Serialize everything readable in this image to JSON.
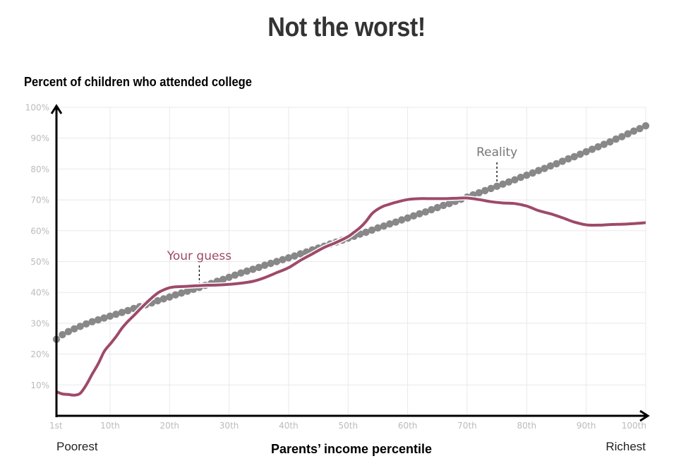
{
  "chart_data": {
    "type": "line",
    "title": "Not the worst!",
    "ylabel": "Percent of children who attended college",
    "xlabel": "Parents’ income percentile",
    "x_left_label": "Poorest",
    "x_right_label": "Richest",
    "xlim": [
      1,
      100
    ],
    "ylim": [
      0,
      100
    ],
    "grid": true,
    "x_ticks": [
      {
        "value": 1,
        "label": "1st"
      },
      {
        "value": 10,
        "label": "10th"
      },
      {
        "value": 20,
        "label": "20th"
      },
      {
        "value": 30,
        "label": "30th"
      },
      {
        "value": 40,
        "label": "40th"
      },
      {
        "value": 50,
        "label": "50th"
      },
      {
        "value": 60,
        "label": "60th"
      },
      {
        "value": 70,
        "label": "70th"
      },
      {
        "value": 80,
        "label": "80th"
      },
      {
        "value": 90,
        "label": "90th"
      },
      {
        "value": 100,
        "label": "100th"
      }
    ],
    "y_ticks": [
      {
        "value": 10,
        "label": "10%"
      },
      {
        "value": 20,
        "label": "20%"
      },
      {
        "value": 30,
        "label": "30%"
      },
      {
        "value": 40,
        "label": "40%"
      },
      {
        "value": 50,
        "label": "50%"
      },
      {
        "value": 60,
        "label": "60%"
      },
      {
        "value": 70,
        "label": "70%"
      },
      {
        "value": 80,
        "label": "80%"
      },
      {
        "value": 90,
        "label": "90%"
      },
      {
        "value": 100,
        "label": "100%"
      }
    ],
    "series": [
      {
        "name": "Reality",
        "style": "dots",
        "color": "#888888",
        "annotation": {
          "label": "Reality",
          "x": 75
        },
        "x": [
          1,
          2,
          3,
          4,
          5,
          6,
          7,
          8,
          9,
          10,
          11,
          12,
          13,
          14,
          15,
          16,
          17,
          18,
          19,
          20,
          21,
          22,
          23,
          24,
          25,
          26,
          27,
          28,
          29,
          30,
          31,
          32,
          33,
          34,
          35,
          36,
          37,
          38,
          39,
          40,
          41,
          42,
          43,
          44,
          45,
          46,
          47,
          48,
          49,
          50,
          51,
          52,
          53,
          54,
          55,
          56,
          57,
          58,
          59,
          60,
          61,
          62,
          63,
          64,
          65,
          66,
          67,
          68,
          69,
          70,
          71,
          72,
          73,
          74,
          75,
          76,
          77,
          78,
          79,
          80,
          81,
          82,
          83,
          84,
          85,
          86,
          87,
          88,
          89,
          90,
          91,
          92,
          93,
          94,
          95,
          96,
          97,
          98,
          99,
          100
        ],
        "y": [
          24.8,
          26.3,
          27.3,
          28.2,
          29.0,
          29.8,
          30.5,
          31.1,
          31.7,
          32.3,
          32.9,
          33.5,
          34.1,
          34.8,
          35.4,
          36.0,
          36.6,
          37.3,
          37.9,
          38.5,
          39.2,
          39.8,
          40.4,
          41.0,
          41.6,
          42.3,
          42.9,
          43.6,
          44.2,
          44.9,
          45.6,
          46.3,
          46.9,
          47.5,
          48.1,
          48.8,
          49.4,
          50.0,
          50.6,
          51.2,
          51.8,
          52.5,
          53.1,
          53.8,
          54.4,
          55.0,
          55.7,
          56.3,
          56.9,
          57.6,
          58.2,
          58.9,
          59.5,
          60.2,
          60.9,
          61.5,
          62.2,
          62.8,
          63.5,
          64.1,
          64.8,
          65.5,
          66.1,
          66.8,
          67.5,
          68.2,
          68.8,
          69.5,
          70.2,
          70.9,
          71.6,
          72.3,
          73.0,
          73.7,
          74.4,
          75.1,
          75.8,
          76.5,
          77.3,
          78.0,
          78.7,
          79.5,
          80.2,
          81.0,
          81.7,
          82.5,
          83.3,
          84.0,
          84.8,
          85.6,
          86.4,
          87.2,
          88.0,
          88.8,
          89.7,
          90.5,
          91.4,
          92.3,
          93.1,
          94.0
        ]
      },
      {
        "name": "Your guess",
        "style": "line",
        "color": "#9e4a6a",
        "annotation": {
          "label": "Your guess",
          "x": 25
        },
        "x": [
          1,
          2,
          3,
          4,
          5,
          6,
          7,
          8,
          9,
          10,
          11,
          12,
          13,
          14,
          15,
          16,
          17,
          18,
          19,
          20,
          21,
          22,
          23,
          24,
          25,
          26,
          28,
          30,
          32,
          34,
          36,
          38,
          40,
          42,
          44,
          46,
          48,
          50,
          51,
          52,
          53,
          54,
          55,
          56,
          57,
          58,
          60,
          62,
          64,
          66,
          68,
          70,
          72,
          74,
          76,
          78,
          80,
          82,
          84,
          86,
          88,
          90,
          92,
          94,
          96,
          98,
          100
        ],
        "y": [
          7.8,
          7.1,
          6.9,
          6.7,
          7.3,
          10.0,
          13.5,
          16.8,
          20.8,
          23.2,
          25.6,
          28.4,
          30.6,
          32.5,
          34.5,
          36.4,
          38.2,
          39.8,
          40.8,
          41.5,
          41.8,
          41.9,
          42.0,
          42.1,
          42.2,
          42.3,
          42.4,
          42.6,
          43.0,
          43.6,
          44.8,
          46.4,
          48.0,
          50.4,
          52.5,
          54.6,
          56.2,
          58.1,
          59.5,
          61.0,
          63.0,
          65.5,
          67.0,
          68.0,
          68.6,
          69.2,
          70.1,
          70.4,
          70.4,
          70.4,
          70.5,
          70.6,
          70.1,
          69.4,
          69.0,
          68.8,
          68.0,
          66.5,
          65.5,
          64.2,
          62.8,
          61.9,
          61.8,
          62.0,
          62.1,
          62.3,
          62.6
        ]
      }
    ]
  }
}
